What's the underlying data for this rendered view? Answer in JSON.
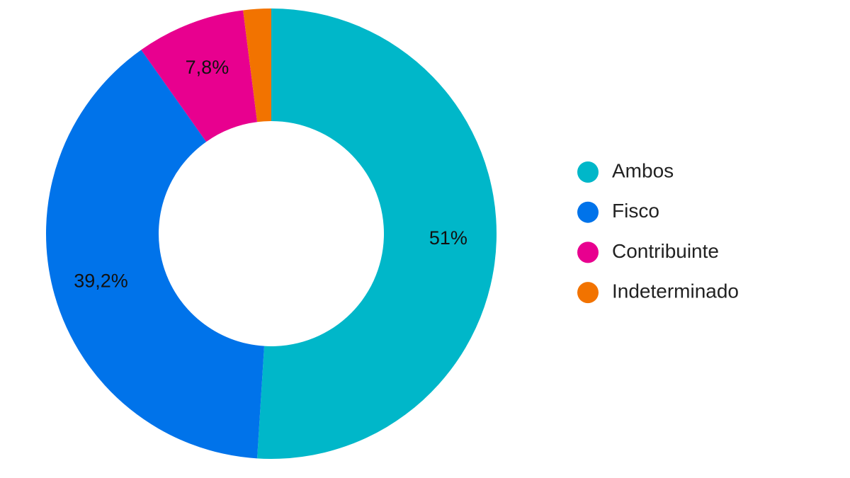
{
  "chart_data": {
    "type": "donut",
    "categories": [
      "Ambos",
      "Fisco",
      "Contribuinte",
      "Indeterminado"
    ],
    "values": [
      51,
      39.2,
      7.8,
      2
    ],
    "value_labels": [
      "51%",
      "39,2%",
      "7,8%",
      null
    ],
    "colors": [
      "#00b7c9",
      "#0073ea",
      "#e8008f",
      "#f27300"
    ],
    "legend": "right"
  }
}
